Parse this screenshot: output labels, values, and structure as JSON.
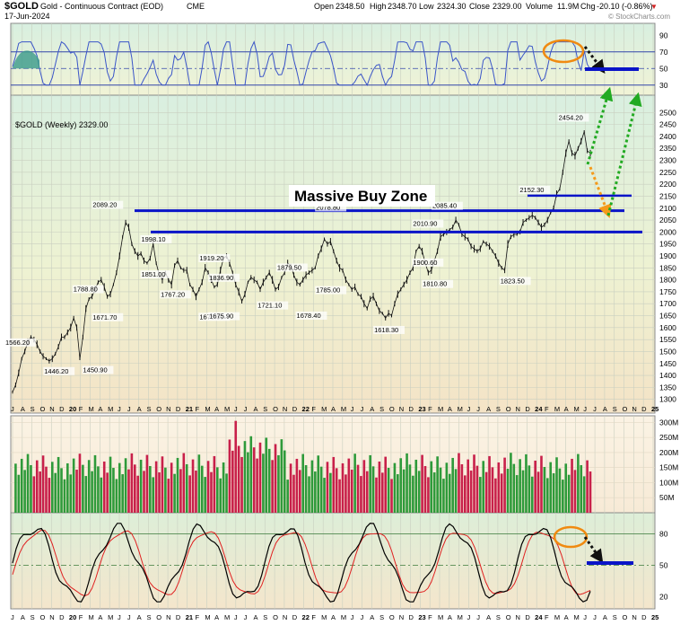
{
  "header": {
    "symbol": "$GOLD",
    "description": "Gold - Continuous Contract (EOD)",
    "exchange": "CME",
    "date": "17-Jun-2024",
    "open_label": "Open",
    "open": "2348.50",
    "high_label": "High",
    "high": "2348.70",
    "low_label": "Low",
    "low": "2324.30",
    "close_label": "Close",
    "close": "2329.00",
    "volume_label": "Volume",
    "volume": "11.9M",
    "chg_label": "Chg",
    "chg": "-20.10 (-0.86%)",
    "watermark": "© StockCharts.com"
  },
  "main_label": "$GOLD (Weekly) 2329.00",
  "annotation_text": "Massive Buy Zone",
  "colors": {
    "rsi_line": "#3a55c8",
    "hline": "#0a14c8",
    "macd_fast": "#000000",
    "macd_slow": "#e02020",
    "vol_up": "#2e9a3a",
    "vol_down": "#c8204a",
    "arrow_green": "#22aa22",
    "arrow_orange": "#f59a1a",
    "ellipse": "#f08a10"
  },
  "chart_data": {
    "type": "line",
    "x_axis_labels": [
      "J",
      "A",
      "S",
      "O",
      "N",
      "D",
      "20",
      "F",
      "M",
      "A",
      "M",
      "J",
      "J",
      "A",
      "S",
      "O",
      "N",
      "D",
      "21",
      "F",
      "M",
      "A",
      "M",
      "J",
      "J",
      "A",
      "S",
      "O",
      "N",
      "D",
      "22",
      "F",
      "M",
      "A",
      "M",
      "J",
      "J",
      "A",
      "S",
      "O",
      "N",
      "D",
      "23",
      "F",
      "M",
      "A",
      "M",
      "J",
      "J",
      "A",
      "S",
      "O",
      "N",
      "D",
      "24",
      "F",
      "M",
      "A",
      "M",
      "J",
      "J",
      "A",
      "S",
      "O",
      "N",
      "D",
      "25"
    ],
    "rsi_panel": {
      "ylim": [
        20,
        100
      ],
      "ticks": [
        90,
        70,
        50,
        30
      ],
      "reference_lines": [
        70,
        50,
        30
      ]
    },
    "price_panel": {
      "ylim": [
        1280,
        2520
      ],
      "ticks": [
        2500,
        2450,
        2400,
        2350,
        2300,
        2250,
        2200,
        2150,
        2100,
        2050,
        2000,
        1950,
        1900,
        1850,
        1800,
        1750,
        1700,
        1650,
        1600,
        1550,
        1500,
        1450,
        1400,
        1350,
        1300
      ],
      "weekly_close": [
        1330,
        1360,
        1410,
        1470,
        1500,
        1540,
        1560,
        1550,
        1530,
        1500,
        1480,
        1470,
        1460,
        1470,
        1490,
        1520,
        1560,
        1560,
        1580,
        1600,
        1640,
        1600,
        1470,
        1560,
        1680,
        1720,
        1730,
        1760,
        1790,
        1800,
        1770,
        1730,
        1740,
        1780,
        1830,
        1900,
        1980,
        2040,
        2020,
        1950,
        1920,
        1900,
        1910,
        1880,
        1870,
        1890,
        1950,
        1870,
        1820,
        1800,
        1830,
        1800,
        1780,
        1860,
        1880,
        1850,
        1840,
        1840,
        1780,
        1760,
        1730,
        1760,
        1790,
        1850,
        1830,
        1800,
        1770,
        1780,
        1840,
        1890,
        1900,
        1870,
        1830,
        1780,
        1750,
        1710,
        1740,
        1790,
        1810,
        1800,
        1790,
        1760,
        1790,
        1810,
        1830,
        1800,
        1760,
        1770,
        1810,
        1830,
        1870,
        1860,
        1820,
        1790,
        1780,
        1800,
        1820,
        1830,
        1840,
        1850,
        1900,
        1930,
        1970,
        1950,
        1960,
        1920,
        1880,
        1850,
        1840,
        1800,
        1780,
        1760,
        1770,
        1740,
        1730,
        1700,
        1680,
        1720,
        1730,
        1700,
        1670,
        1660,
        1640,
        1660,
        1650,
        1700,
        1740,
        1760,
        1780,
        1800,
        1830,
        1850,
        1920,
        1940,
        1920,
        1870,
        1830,
        1840,
        1880,
        1920,
        1980,
        1990,
        2000,
        2010,
        2020,
        2050,
        2030,
        1990,
        1980,
        1970,
        1940,
        1930,
        1920,
        1930,
        1960,
        1950,
        1940,
        1920,
        1900,
        1870,
        1850,
        1840,
        1950,
        1980,
        1990,
        1990,
        2000,
        2040,
        2050,
        2060,
        2070,
        2060,
        2040,
        2020,
        2030,
        2050,
        2080,
        2100,
        2160,
        2180,
        2250,
        2330,
        2380,
        2330,
        2320,
        2350,
        2380,
        2420,
        2340,
        2330
      ],
      "annotations": [
        {
          "text": "1566.20",
          "x": "J 2019",
          "y": 1566.2
        },
        {
          "text": "1446.20",
          "x": "N 2019",
          "y": 1446.2
        },
        {
          "text": "1788.80",
          "x": "F 2020",
          "y": 1788.8
        },
        {
          "text": "1450.90",
          "x": "M 2020",
          "y": 1450.9
        },
        {
          "text": "1671.70",
          "x": "A 2020",
          "y": 1671.7
        },
        {
          "text": "2089.20",
          "x": "A 2020",
          "y": 2089.2
        },
        {
          "text": "1998.10",
          "x": "S 2020",
          "y": 1998.1
        },
        {
          "text": "1851.00",
          "x": "S 2020",
          "y": 1851.0
        },
        {
          "text": "1767.20",
          "x": "N 2020",
          "y": 1767.2
        },
        {
          "text": "1673.30",
          "x": "M 2021",
          "y": 1673.3
        },
        {
          "text": "1919.20",
          "x": "M 2021",
          "y": 1919.2
        },
        {
          "text": "1836.90",
          "x": "A 2021",
          "y": 1836.9
        },
        {
          "text": "1675.90",
          "x": "A 2021",
          "y": 1675.9
        },
        {
          "text": "1879.50",
          "x": "N 2021",
          "y": 1879.5
        },
        {
          "text": "1721.10",
          "x": "S 2021",
          "y": 1721.1
        },
        {
          "text": "2078.80",
          "x": "M 2022",
          "y": 2078.8
        },
        {
          "text": "1785.00",
          "x": "M 2022",
          "y": 1785.0
        },
        {
          "text": "1678.40",
          "x": "J 2022",
          "y": 1678.4
        },
        {
          "text": "1618.30",
          "x": "S 2022",
          "y": 1618.3
        },
        {
          "text": "1810.80",
          "x": "F 2023",
          "y": 1810.8
        },
        {
          "text": "2085.40",
          "x": "M 2023",
          "y": 2085.4
        },
        {
          "text": "1900.60",
          "x": "J 2023",
          "y": 1900.6
        },
        {
          "text": "2010.90",
          "x": "J 2023",
          "y": 2010.9
        },
        {
          "text": "1823.50",
          "x": "O 2023",
          "y": 1823.5
        },
        {
          "text": "2152.30",
          "x": "D 2023",
          "y": 2152.3
        },
        {
          "text": "2454.20",
          "x": "A 2024",
          "y": 2454.2
        }
      ],
      "horizontal_lines": [
        2089.2,
        2000,
        2152.3,
        2089.2
      ]
    },
    "volume_panel": {
      "ylim": [
        0,
        310
      ],
      "ticks": [
        "300M",
        "250M",
        "200M",
        "150M",
        "100M",
        "50M"
      ]
    },
    "macd_panel": {
      "ylim": [
        10,
        95
      ],
      "ticks": [
        80,
        50,
        20
      ],
      "reference_lines": [
        80,
        50
      ]
    }
  }
}
